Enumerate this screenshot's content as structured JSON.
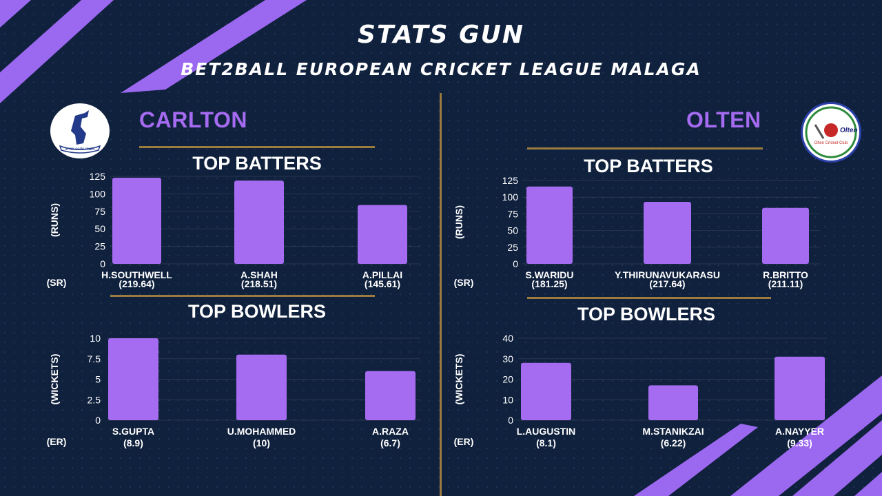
{
  "header": {
    "title": "STATS GUN",
    "subtitle": "BET2BALL EUROPEAN CRICKET LEAGUE MALAGA"
  },
  "teams": [
    {
      "name": "CARLTON",
      "logo_text": "tu ne cede malis"
    },
    {
      "name": "OLTEN",
      "logo_text": "Olten",
      "logo_subtext": "Olten Cricket Club"
    }
  ],
  "colors": {
    "background": "#10213d",
    "bar": "#a56bf0",
    "accent": "#9c7b3f",
    "deco": "#9b68f0"
  },
  "chart_data": [
    {
      "type": "bar",
      "team": "CARLTON",
      "title": "TOP BATTERS",
      "ylabel": "(RUNS)",
      "secondary_label": "(SR)",
      "ylim": [
        0,
        125
      ],
      "yticks": [
        "0",
        "25",
        "50",
        "75",
        "100",
        "125"
      ],
      "categories": [
        "H.SOUTHWELL",
        "A.SHAH",
        "A.PILLAI"
      ],
      "sub_values": [
        "(219.64)",
        "(218.51)",
        "(145.61)"
      ],
      "values": [
        123,
        119,
        84
      ]
    },
    {
      "type": "bar",
      "team": "CARLTON",
      "title": "TOP BOWLERS",
      "ylabel": "(WICKETS)",
      "secondary_label": "(ER)",
      "ylim": [
        0,
        10
      ],
      "yticks": [
        "0",
        "2.5",
        "5",
        "7.5",
        "10"
      ],
      "categories": [
        "S.GUPTA",
        "U.MOHAMMED",
        "A.RAZA"
      ],
      "sub_values": [
        "(8.9)",
        "(10)",
        "(6.7)"
      ],
      "values": [
        10,
        8,
        6
      ]
    },
    {
      "type": "bar",
      "team": "OLTEN",
      "title": "TOP BATTERS",
      "ylabel": "(RUNS)",
      "secondary_label": "(SR)",
      "ylim": [
        0,
        125
      ],
      "yticks": [
        "0",
        "25",
        "50",
        "75",
        "100",
        "125"
      ],
      "categories": [
        "S.WARIDU",
        "Y.THIRUNAVUKARASU",
        "R.BRITTO"
      ],
      "sub_values": [
        "(181.25)",
        "(217.64)",
        "(211.11)"
      ],
      "values": [
        116,
        93,
        84
      ]
    },
    {
      "type": "bar",
      "team": "OLTEN",
      "title": "TOP BOWLERS",
      "ylabel": "(WICKETS)",
      "secondary_label": "(ER)",
      "ylim": [
        0,
        40
      ],
      "yticks": [
        "0",
        "10",
        "20",
        "30",
        "40"
      ],
      "categories": [
        "L.AUGUSTIN",
        "M.STANIKZAI",
        "A.NAYYER"
      ],
      "sub_values": [
        "(8.1)",
        "(6.22)",
        "(9.33)"
      ],
      "values": [
        28,
        17,
        31
      ]
    }
  ]
}
